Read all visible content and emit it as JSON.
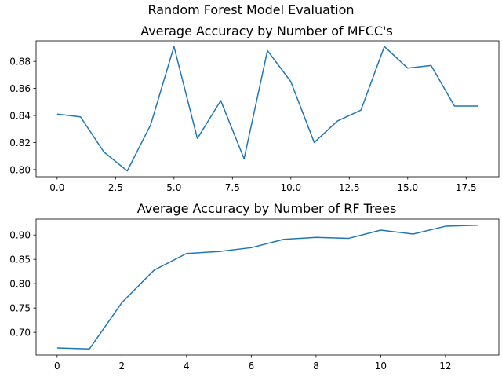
{
  "suptitle": "Random Forest Model Evaluation",
  "chart_data": [
    {
      "type": "line",
      "title": "Average Accuracy by Number of MFCC's",
      "xlabel": "",
      "ylabel": "",
      "color": "#1f77b4",
      "x": [
        0,
        1,
        2,
        3,
        4,
        5,
        6,
        7,
        8,
        9,
        10,
        11,
        12,
        13,
        14,
        15,
        16,
        17,
        18
      ],
      "values": [
        0.841,
        0.839,
        0.813,
        0.799,
        0.833,
        0.891,
        0.823,
        0.851,
        0.808,
        0.888,
        0.865,
        0.82,
        0.836,
        0.844,
        0.891,
        0.875,
        0.877,
        0.847,
        0.847
      ],
      "xlim": [
        -0.9,
        18.9
      ],
      "ylim": [
        0.7947,
        0.8952
      ],
      "xticks": [
        0,
        2.5,
        5,
        7.5,
        10,
        12.5,
        15,
        17.5
      ],
      "xtick_labels": [
        "0.0",
        "2.5",
        "5.0",
        "7.5",
        "10.0",
        "12.5",
        "15.0",
        "17.5"
      ],
      "yticks": [
        0.8,
        0.82,
        0.84,
        0.86,
        0.88
      ],
      "ytick_labels": [
        "0.80",
        "0.82",
        "0.84",
        "0.86",
        "0.88"
      ],
      "grid": false
    },
    {
      "type": "line",
      "title": "Average Accuracy by Number of RF Trees",
      "xlabel": "",
      "ylabel": "",
      "color": "#1f77b4",
      "x": [
        0,
        1,
        2,
        3,
        4,
        5,
        6,
        7,
        8,
        9,
        10,
        11,
        12,
        13
      ],
      "values": [
        0.668,
        0.666,
        0.761,
        0.828,
        0.862,
        0.866,
        0.874,
        0.891,
        0.895,
        0.893,
        0.91,
        0.902,
        0.918,
        0.92
      ],
      "xlim": [
        -0.65,
        13.65
      ],
      "ylim": [
        0.6534,
        0.9326
      ],
      "xticks": [
        0,
        2,
        4,
        6,
        8,
        10,
        12
      ],
      "xtick_labels": [
        "0",
        "2",
        "4",
        "6",
        "8",
        "10",
        "12"
      ],
      "yticks": [
        0.7,
        0.75,
        0.8,
        0.85,
        0.9
      ],
      "ytick_labels": [
        "0.70",
        "0.75",
        "0.80",
        "0.85",
        "0.90"
      ],
      "grid": false
    }
  ]
}
